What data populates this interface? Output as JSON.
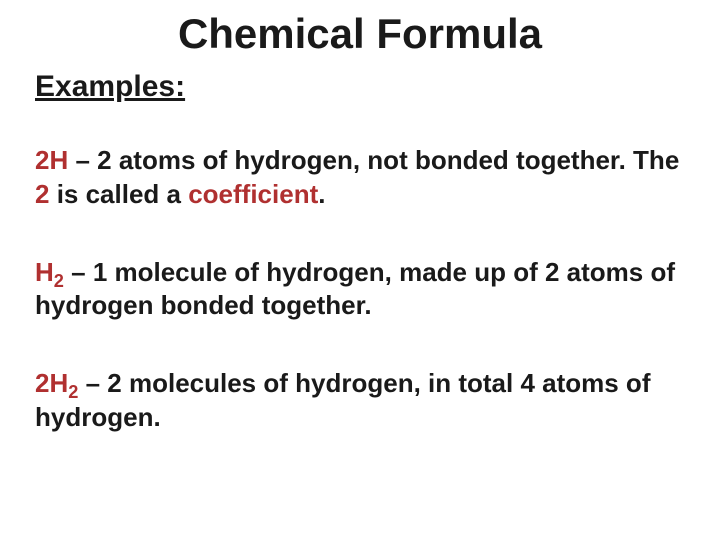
{
  "title": "Chemical Formula",
  "subtitle": "Examples:",
  "examples": [
    {
      "formula_coeff": "2",
      "formula_elem": "H",
      "formula_sub": "",
      "desc_before": " – 2 atoms of hydrogen, not bonded together. The ",
      "accent_mid": "2",
      "desc_mid": " is called a ",
      "accent_end": "coefficient",
      "desc_after": "."
    },
    {
      "formula_coeff": "",
      "formula_elem": "H",
      "formula_sub": "2",
      "desc_before": " – 1 molecule of hydrogen, made up of 2 atoms of hydrogen bonded together.",
      "accent_mid": "",
      "desc_mid": "",
      "accent_end": "",
      "desc_after": ""
    },
    {
      "formula_coeff": "2",
      "formula_elem": "H",
      "formula_sub": "2",
      "desc_before": " – 2 molecules of hydrogen, in total 4 atoms of hydrogen.",
      "accent_mid": "",
      "desc_mid": "",
      "accent_end": "",
      "desc_after": ""
    }
  ],
  "colors": {
    "text": "#1a1a1a",
    "accent": "#b03030",
    "background": "#ffffff"
  },
  "typography": {
    "title_fontsize": 42,
    "subtitle_fontsize": 30,
    "body_fontsize": 26,
    "font_family": "Arial",
    "font_weight": "bold"
  }
}
